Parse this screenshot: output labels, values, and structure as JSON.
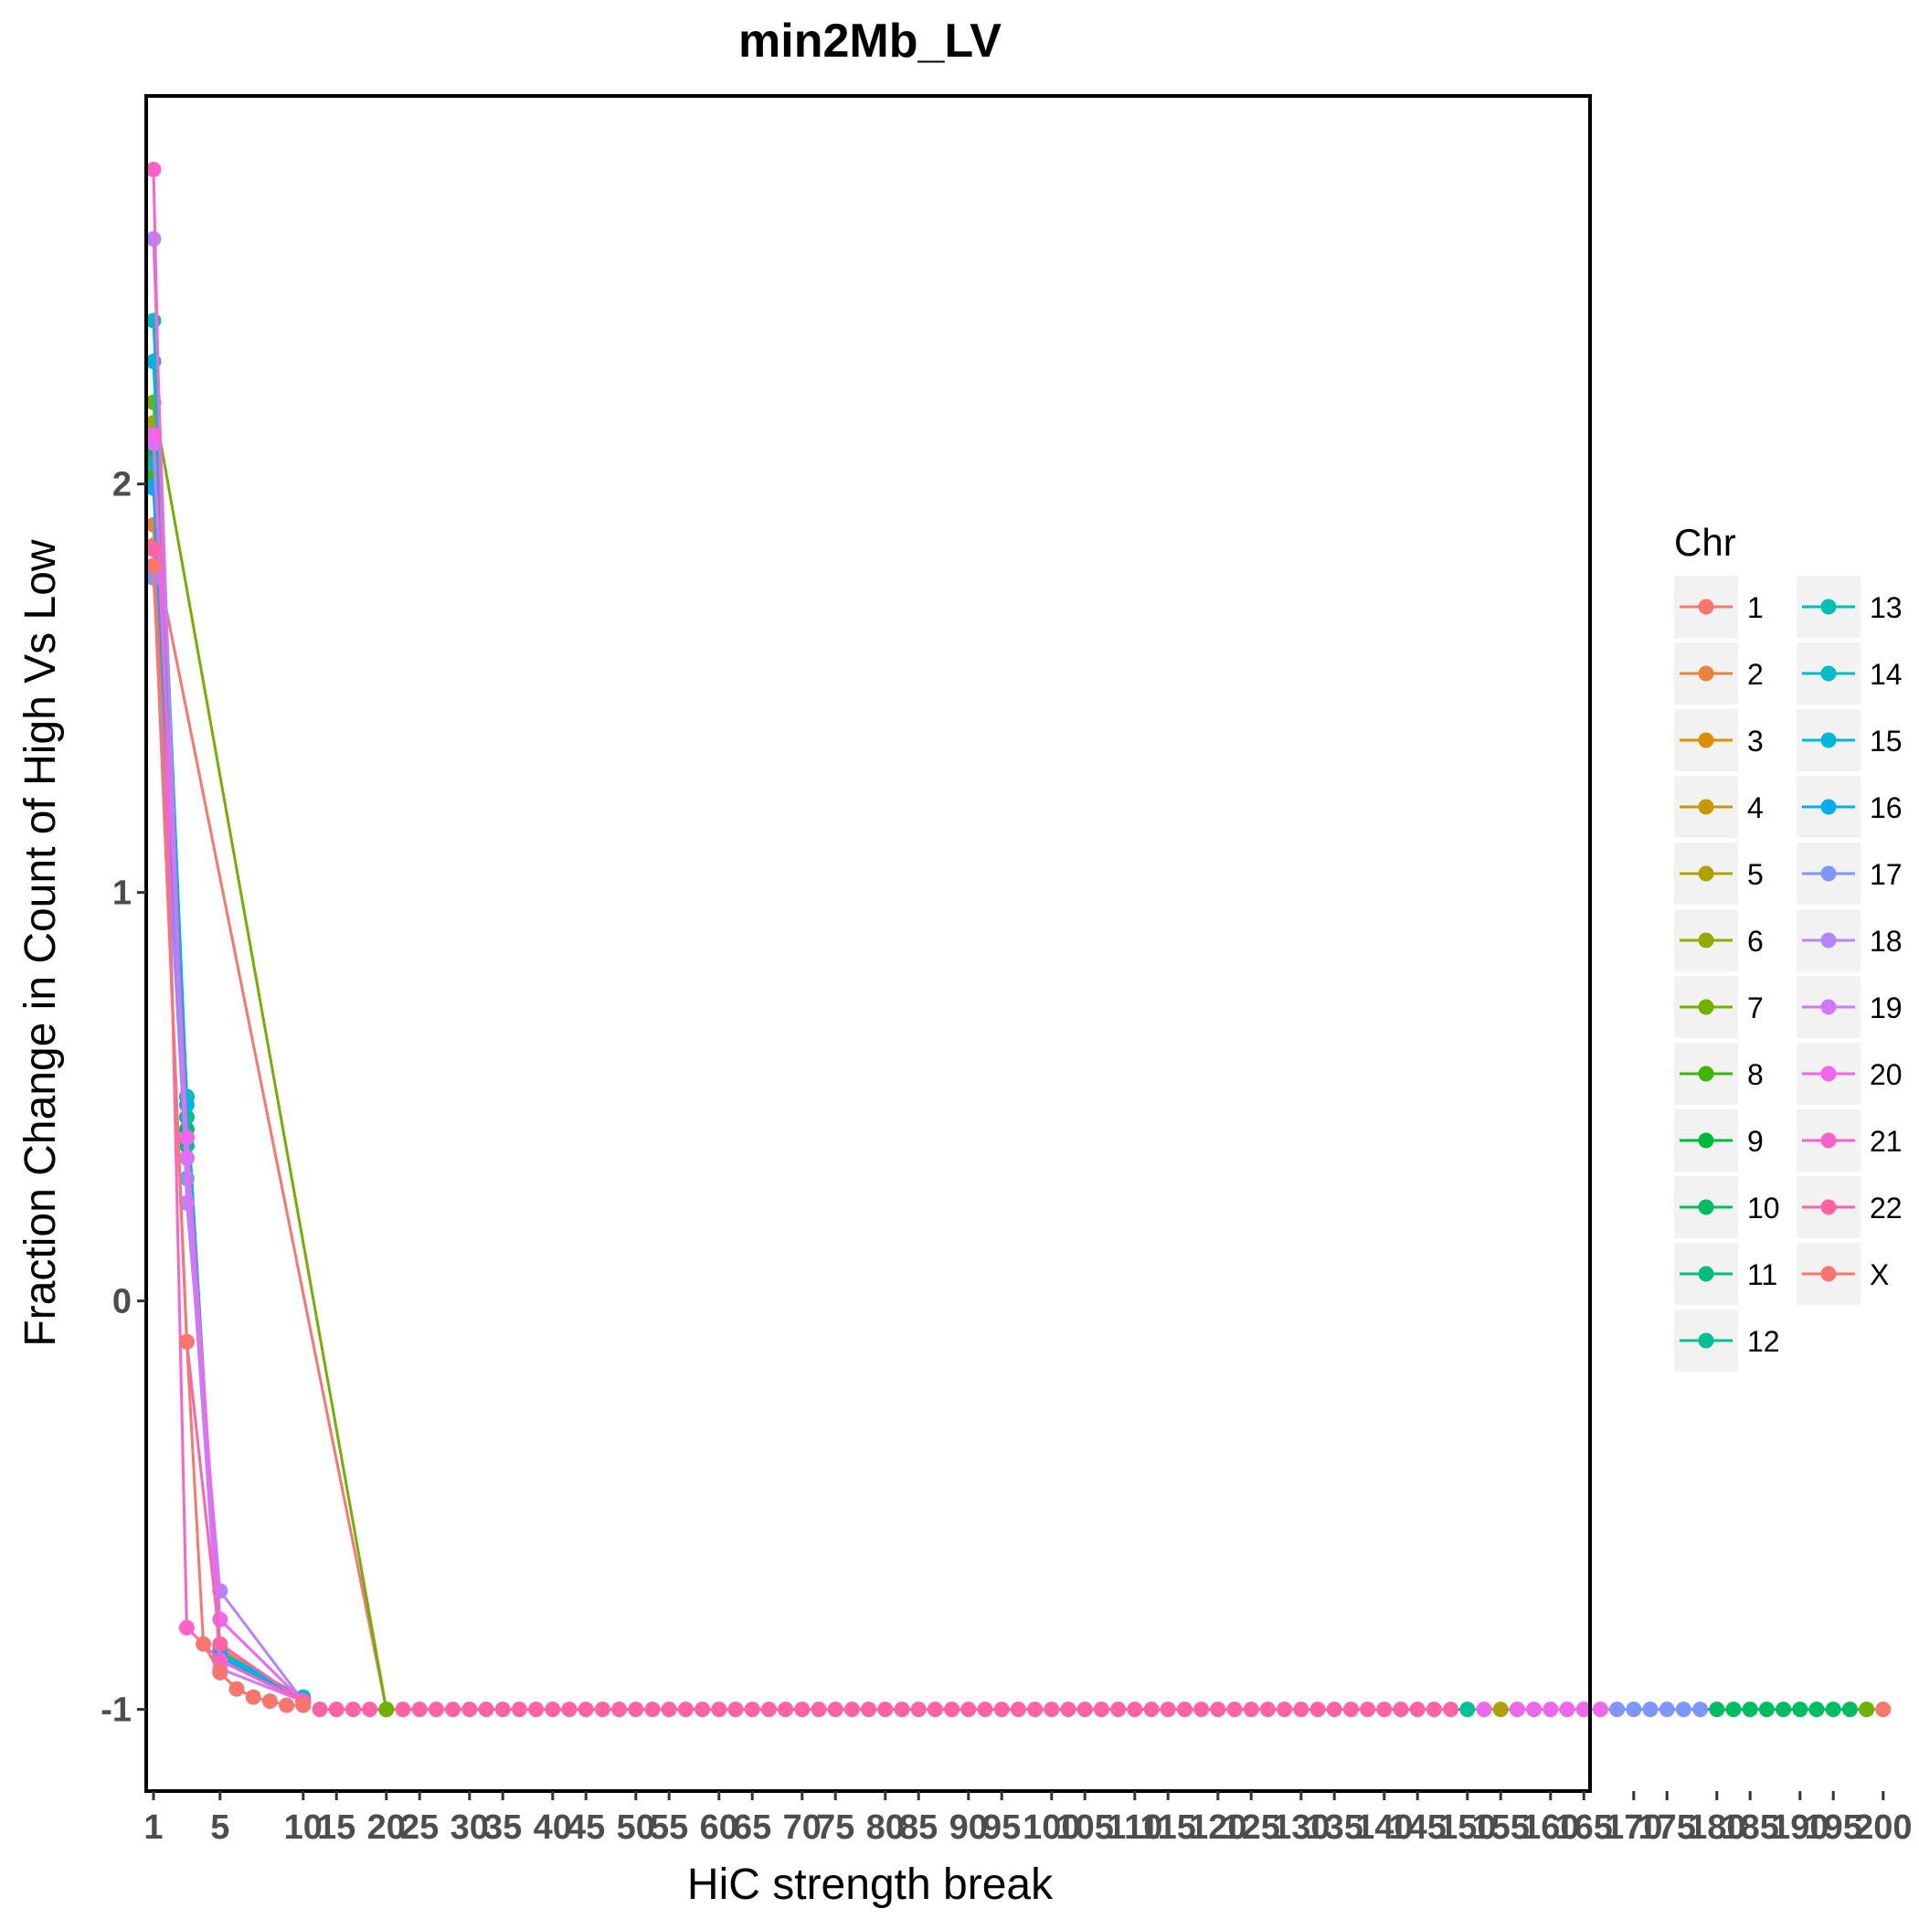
{
  "chart_data": {
    "type": "line",
    "title": "min2Mb_LV",
    "xlabel": "HiC strength break",
    "ylabel": "Fraction Change in Count of High Vs Low",
    "x_scale": "categorical",
    "x_categories": [
      1,
      2,
      3,
      4,
      5,
      6,
      7,
      8,
      9,
      10,
      12,
      14,
      16,
      18,
      20,
      22,
      24,
      26,
      28,
      30,
      32,
      34,
      36,
      38,
      40,
      42,
      44,
      46,
      48,
      50,
      52,
      54,
      56,
      58,
      60,
      62,
      64,
      66,
      68,
      70,
      72,
      74,
      76,
      78,
      80,
      82,
      84,
      86,
      88,
      90,
      92,
      94,
      96,
      98,
      100,
      102,
      104,
      106,
      108,
      110,
      112,
      114,
      116,
      118,
      120,
      122,
      124,
      126,
      128,
      130,
      132,
      134,
      136,
      138,
      140,
      142,
      144,
      146,
      148,
      150,
      152,
      154,
      156,
      158,
      160,
      162,
      164,
      166,
      168,
      170,
      172,
      174,
      176,
      178,
      180,
      182,
      184,
      186,
      188,
      190,
      192,
      194,
      196,
      198,
      200
    ],
    "x_tick_labels": [
      "1",
      "5",
      "10",
      "15",
      "20",
      "25",
      "30",
      "35",
      "40",
      "45",
      "50",
      "55",
      "60",
      "65",
      "70",
      "75",
      "80",
      "85",
      "90",
      "95",
      "100",
      "105",
      "110",
      "115",
      "120",
      "125",
      "130",
      "135",
      "140",
      "145",
      "150",
      "155",
      "160",
      "165",
      "170",
      "175",
      "180",
      "185",
      "190",
      "195",
      "200"
    ],
    "y_ticks": [
      -1,
      0,
      1,
      2
    ],
    "ylim": [
      -1.2,
      2.95
    ],
    "grid": false,
    "legend": {
      "title": "Chr",
      "position": "right",
      "columns": 2,
      "entries": [
        "1",
        "2",
        "3",
        "4",
        "5",
        "6",
        "7",
        "8",
        "9",
        "10",
        "11",
        "12",
        "13",
        "14",
        "15",
        "16",
        "17",
        "18",
        "19",
        "20",
        "21",
        "22",
        "X"
      ]
    },
    "series": [
      {
        "name": "1",
        "color": "#F8766D",
        "x": [
          1,
          20
        ],
        "y": [
          1.85,
          -1
        ]
      },
      {
        "name": "2",
        "color": "#EC8239",
        "x": [
          1,
          3,
          5,
          10
        ],
        "y": [
          1.9,
          0.3,
          -0.85,
          -0.98
        ]
      },
      {
        "name": "3",
        "color": "#DB8E00",
        "x": [
          1,
          3,
          5,
          10
        ],
        "y": [
          2.05,
          0.4,
          -0.87,
          -0.98
        ]
      },
      {
        "name": "4",
        "color": "#C79800",
        "x": [
          1,
          3,
          5,
          10
        ],
        "y": [
          2.1,
          0.45,
          -0.86,
          -0.98
        ]
      },
      {
        "name": "5",
        "color": "#AFA100",
        "x": [
          1,
          3,
          5,
          10
        ],
        "y": [
          2.15,
          0.5,
          -0.88,
          -0.98
        ]
      },
      {
        "name": "6",
        "color": "#94AA00",
        "x": [
          1,
          3,
          5,
          10
        ],
        "y": [
          2.2,
          0.5,
          -0.87,
          -0.98
        ]
      },
      {
        "name": "7",
        "color": "#72B000",
        "x": [
          1,
          20
        ],
        "y": [
          2.2,
          -1
        ]
      },
      {
        "name": "8",
        "color": "#3DB600",
        "x": [
          1,
          3,
          5,
          10
        ],
        "y": [
          2.02,
          0.35,
          -0.88,
          -0.98
        ]
      },
      {
        "name": "9",
        "color": "#00BA38",
        "x": [
          1,
          3,
          5,
          10
        ],
        "y": [
          2.05,
          0.4,
          -0.86,
          -0.98
        ]
      },
      {
        "name": "10",
        "color": "#00BD5F",
        "x": [
          1,
          3,
          5,
          10
        ],
        "y": [
          2.08,
          0.42,
          -0.87,
          -0.98
        ]
      },
      {
        "name": "11",
        "color": "#00BF7D",
        "x": [
          1,
          3,
          5,
          10
        ],
        "y": [
          2.0,
          0.38,
          -0.88,
          -0.98
        ]
      },
      {
        "name": "12",
        "color": "#00C097",
        "x": [
          1,
          3,
          5,
          10
        ],
        "y": [
          2.1,
          0.45,
          -0.87,
          -0.98
        ]
      },
      {
        "name": "13",
        "color": "#00C0AF",
        "x": [
          1,
          3,
          5,
          10
        ],
        "y": [
          2.05,
          0.4,
          -0.88,
          -0.98
        ]
      },
      {
        "name": "14",
        "color": "#00BCC6",
        "x": [
          1,
          3,
          5,
          10
        ],
        "y": [
          2.4,
          0.5,
          -0.86,
          -0.98
        ]
      },
      {
        "name": "15",
        "color": "#00B6DB",
        "x": [
          1,
          3,
          5,
          10
        ],
        "y": [
          2.3,
          0.48,
          -0.86,
          -0.97
        ]
      },
      {
        "name": "16",
        "color": "#00ADEE",
        "x": [
          1,
          3,
          5,
          10
        ],
        "y": [
          1.99,
          0.35,
          -0.87,
          -0.98
        ]
      },
      {
        "name": "17",
        "color": "#7F96FF",
        "x": [
          1,
          3,
          5,
          10
        ],
        "y": [
          1.77,
          0.3,
          -0.88,
          -0.98
        ]
      },
      {
        "name": "18",
        "color": "#B385FF",
        "x": [
          1,
          3,
          5,
          10
        ],
        "y": [
          2.6,
          0.24,
          -0.71,
          -0.98
        ]
      },
      {
        "name": "19",
        "color": "#D277FF",
        "x": [
          1,
          3,
          5,
          10
        ],
        "y": [
          2.1,
          0.35,
          -0.9,
          -0.98
        ]
      },
      {
        "name": "20",
        "color": "#EF67EB",
        "x": [
          1,
          3,
          5,
          10
        ],
        "y": [
          2.12,
          0.4,
          -0.78,
          -0.98
        ]
      },
      {
        "name": "21",
        "color": "#FF61C9",
        "x": [
          1,
          3,
          5,
          10
        ],
        "y": [
          2.77,
          -0.8,
          -0.88,
          -0.98
        ]
      },
      {
        "name": "22",
        "color": "#FF63A6",
        "x": [
          1,
          3,
          5,
          10
        ],
        "y": [
          1.84,
          -0.1,
          -0.84,
          -0.98
        ]
      },
      {
        "name": "X",
        "color": "#F8766D",
        "x": [
          1,
          3,
          4,
          5,
          6,
          7,
          8,
          9,
          10
        ],
        "y": [
          1.8,
          -0.1,
          -0.84,
          -0.91,
          -0.95,
          -0.97,
          -0.98,
          -0.99,
          -0.99
        ]
      }
    ],
    "flat_run": {
      "y": -1,
      "x_start": 12,
      "x_end": 200,
      "color_bands": [
        {
          "from": 12,
          "to": 148,
          "color": "#FF63A6"
        },
        {
          "from": 150,
          "to": 150,
          "color": "#00C097"
        },
        {
          "from": 152,
          "to": 152,
          "color": "#EF67EB"
        },
        {
          "from": 154,
          "to": 154,
          "color": "#AFA100"
        },
        {
          "from": 156,
          "to": 166,
          "color": "#EF67EB"
        },
        {
          "from": 168,
          "to": 178,
          "color": "#7F96FF"
        },
        {
          "from": 180,
          "to": 196,
          "color": "#00BD5F"
        },
        {
          "from": 198,
          "to": 198,
          "color": "#72B000"
        },
        {
          "from": 200,
          "to": 200,
          "color": "#F8766D"
        }
      ]
    }
  }
}
